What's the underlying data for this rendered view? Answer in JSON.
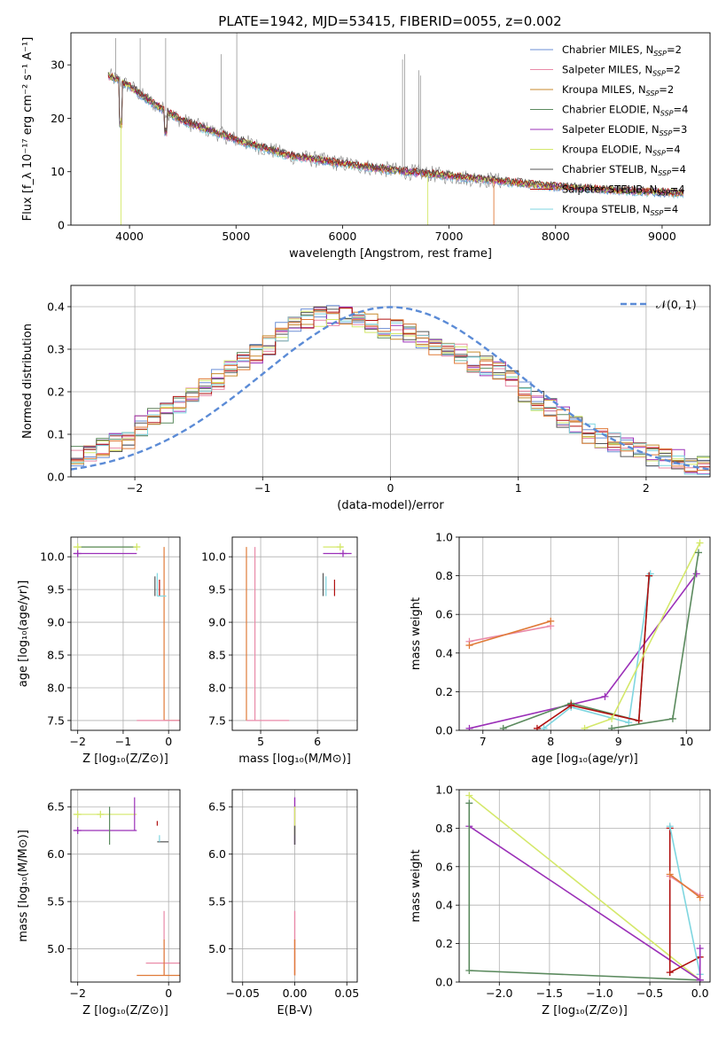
{
  "figure": {
    "title": "PLATE=1942, MJD=53415, FIBERID=0055, z=0.002"
  },
  "colors": {
    "chabrier_miles": "#6b8fd6",
    "salpeter_miles": "#e98aa8",
    "kroupa_miles": "#c88a2e",
    "chabrier_elodie": "#5b8a5e",
    "salpeter_elodie": "#9b30b8",
    "kroupa_elodie": "#d4e86a",
    "chabrier_stelib": "#555555",
    "salpeter_stelib": "#b01010",
    "kroupa_stelib": "#7fd6e0",
    "observed": "#888888",
    "orange": "#e07b39",
    "gauss": "#5b8bd6",
    "grid": "#b0b0b0"
  },
  "chart_data": [
    {
      "id": "spectrum",
      "type": "line",
      "title": "PLATE=1942, MJD=53415, FIBERID=0055, z=0.002",
      "xlabel": "wavelength [Angstrom, rest frame]",
      "ylabel": "Flux [f_λ 10⁻¹⁷ erg cm⁻² s⁻¹ A⁻¹]",
      "xlim": [
        3450,
        9450
      ],
      "ylim": [
        0,
        36
      ],
      "xticks": [
        4000,
        5000,
        6000,
        7000,
        8000,
        9000
      ],
      "yticks": [
        0,
        10,
        20,
        30
      ],
      "grid": false,
      "legend_position": "top-right",
      "continuum": {
        "x": [
          3800,
          3900,
          4000,
          4200,
          4500,
          5000,
          5500,
          6000,
          6500,
          7000,
          7500,
          8000,
          8500,
          9000,
          9200
        ],
        "y": [
          28,
          27,
          26,
          23,
          19.5,
          16,
          13,
          11.5,
          10.2,
          9.2,
          8.2,
          7.2,
          6.6,
          6.1,
          5.9
        ]
      },
      "legend": [
        {
          "label": "Chabrier MILES, N",
          "sub": "SSP",
          "eq": "=2",
          "color_key": "chabrier_miles"
        },
        {
          "label": "Salpeter MILES, N",
          "sub": "SSP",
          "eq": "=2",
          "color_key": "salpeter_miles"
        },
        {
          "label": "Kroupa MILES, N",
          "sub": "SSP",
          "eq": "=2",
          "color_key": "kroupa_miles"
        },
        {
          "label": "Chabrier ELODIE, N",
          "sub": "SSP",
          "eq": "=4",
          "color_key": "chabrier_elodie"
        },
        {
          "label": "Salpeter ELODIE, N",
          "sub": "SSP",
          "eq": "=3",
          "color_key": "salpeter_elodie"
        },
        {
          "label": "Kroupa ELODIE, N",
          "sub": "SSP",
          "eq": "=4",
          "color_key": "kroupa_elodie"
        },
        {
          "label": "Chabrier STELIB, N",
          "sub": "SSP",
          "eq": "=4",
          "color_key": "chabrier_stelib"
        },
        {
          "label": "Salpeter STELIB, N",
          "sub": "SSP",
          "eq": "=4",
          "color_key": "salpeter_stelib"
        },
        {
          "label": "Kroupa STELIB, N",
          "sub": "SSP",
          "eq": "=4",
          "color_key": "kroupa_stelib"
        }
      ]
    },
    {
      "id": "residuals",
      "type": "line",
      "xlabel": "(data-model)/error",
      "ylabel": "Normed distribution",
      "xlim": [
        -2.5,
        2.5
      ],
      "ylim": [
        0,
        0.45
      ],
      "xticks": [
        -2,
        -1,
        0,
        1,
        2
      ],
      "yticks": [
        0.0,
        0.1,
        0.2,
        0.3,
        0.4
      ],
      "grid": true,
      "legend_position": "top-right",
      "legend_label": "𝒩(0, 1)",
      "gaussian": {
        "mean": 0,
        "sigma": 1
      },
      "hist_center": {
        "x": [
          -2.45,
          -2.35,
          -2.25,
          -2.15,
          -2.05,
          -1.95,
          -1.85,
          -1.75,
          -1.65,
          -1.55,
          -1.45,
          -1.35,
          -1.25,
          -1.15,
          -1.05,
          -0.95,
          -0.85,
          -0.75,
          -0.65,
          -0.55,
          -0.45,
          -0.35,
          -0.25,
          -0.15,
          -0.05,
          0.05,
          0.15,
          0.25,
          0.35,
          0.45,
          0.55,
          0.65,
          0.75,
          0.85,
          0.95,
          1.05,
          1.15,
          1.25,
          1.35,
          1.45,
          1.55,
          1.65,
          1.75,
          1.85,
          1.95,
          2.05,
          2.15,
          2.25,
          2.35,
          2.45
        ],
        "y": [
          0.05,
          0.055,
          0.07,
          0.08,
          0.09,
          0.12,
          0.14,
          0.15,
          0.17,
          0.19,
          0.21,
          0.23,
          0.25,
          0.27,
          0.29,
          0.31,
          0.34,
          0.36,
          0.37,
          0.375,
          0.38,
          0.375,
          0.37,
          0.36,
          0.35,
          0.345,
          0.335,
          0.32,
          0.31,
          0.3,
          0.29,
          0.27,
          0.26,
          0.25,
          0.23,
          0.2,
          0.18,
          0.16,
          0.14,
          0.12,
          0.1,
          0.09,
          0.08,
          0.07,
          0.06,
          0.05,
          0.045,
          0.04,
          0.03,
          0.025
        ]
      }
    },
    {
      "id": "age_vs_Z",
      "type": "scatter",
      "xlabel": "Z [log₁₀(Z/Z⊙)]",
      "ylabel": "age  [log₁₀(age/yr)]",
      "xlim": [
        -2.15,
        0.25
      ],
      "ylim": [
        7.35,
        10.3
      ],
      "xticks": [
        -2,
        -1,
        0
      ],
      "yticks": [
        7.5,
        8.0,
        8.5,
        9.0,
        9.5,
        10.0
      ],
      "grid": true
    },
    {
      "id": "age_vs_mass",
      "type": "scatter",
      "xlabel": "mass [log₁₀(M/M⊙)]",
      "xlim": [
        4.5,
        6.7
      ],
      "ylim": [
        7.35,
        10.3
      ],
      "xticks": [
        5,
        6
      ],
      "yticks": [
        7.5,
        8.0,
        8.5,
        9.0,
        9.5,
        10.0
      ],
      "grid": true
    },
    {
      "id": "weight_vs_age",
      "type": "line",
      "xlabel": "age  [log₁₀(age/yr)]",
      "ylabel": "mass weight",
      "xlim": [
        6.65,
        10.35
      ],
      "ylim": [
        0,
        1.0
      ],
      "xticks": [
        7,
        8,
        9,
        10
      ],
      "yticks": [
        0.0,
        0.2,
        0.4,
        0.6,
        0.8,
        1.0
      ],
      "grid": true,
      "series": [
        {
          "color_key": "salpeter_miles",
          "x": [
            6.8,
            8.0
          ],
          "y": [
            0.46,
            0.54
          ]
        },
        {
          "color_key": "orange",
          "x": [
            6.8,
            8.0
          ],
          "y": [
            0.44,
            0.565
          ]
        },
        {
          "color_key": "salpeter_elodie",
          "x": [
            6.8,
            8.8,
            10.15
          ],
          "y": [
            0.01,
            0.175,
            0.81
          ]
        },
        {
          "color_key": "chabrier_elodie",
          "x": [
            7.3,
            8.3,
            9.3,
            9.45
          ],
          "y": [
            0.01,
            0.14,
            0.05,
            0.8
          ]
        },
        {
          "color_key": "kroupa_stelib",
          "x": [
            7.9,
            8.3,
            9.15,
            9.47
          ],
          "y": [
            0.01,
            0.12,
            0.04,
            0.81
          ]
        },
        {
          "color_key": "salpeter_stelib",
          "x": [
            7.8,
            8.3,
            9.3,
            9.45
          ],
          "y": [
            0.01,
            0.13,
            0.05,
            0.8
          ]
        },
        {
          "color_key": "kroupa_elodie",
          "x": [
            8.5,
            8.9,
            10.2
          ],
          "y": [
            0.01,
            0.06,
            0.97
          ]
        },
        {
          "color_key": "chabrier_elodie",
          "x": [
            8.9,
            9.8,
            10.18
          ],
          "y": [
            0.01,
            0.06,
            0.92
          ]
        }
      ]
    },
    {
      "id": "mass_vs_Z",
      "type": "scatter",
      "xlabel": "Z [log₁₀(Z/Z⊙)]",
      "ylabel": "mass [log₁₀(M/M⊙)]",
      "xlim": [
        -2.15,
        0.25
      ],
      "ylim": [
        4.65,
        6.68
      ],
      "xticks": [
        -2,
        0
      ],
      "yticks": [
        5.0,
        5.5,
        6.0,
        6.5
      ],
      "grid": true
    },
    {
      "id": "mass_vs_ebv",
      "type": "scatter",
      "xlabel": "E(B-V)",
      "xlim": [
        -0.06,
        0.06
      ],
      "ylim": [
        4.65,
        6.68
      ],
      "xticks": [
        -0.05,
        0.0,
        0.05
      ],
      "yticks": [
        5.0,
        5.5,
        6.0,
        6.5
      ],
      "grid": true
    },
    {
      "id": "weight_vs_Z",
      "type": "line",
      "xlabel": "Z [log₁₀(Z/Z⊙)]",
      "ylabel": "mass weight",
      "xlim": [
        -2.4,
        0.1
      ],
      "ylim": [
        0,
        1.0
      ],
      "xticks": [
        -2.0,
        -1.5,
        -1.0,
        -0.5,
        0.0
      ],
      "yticks": [
        0.0,
        0.2,
        0.4,
        0.6,
        0.8,
        1.0
      ],
      "grid": true,
      "series": [
        {
          "color_key": "kroupa_elodie",
          "x": [
            -2.3,
            0.0
          ],
          "y": [
            0.97,
            0.01
          ]
        },
        {
          "color_key": "salpeter_elodie",
          "x": [
            -2.3,
            0.0
          ],
          "y": [
            0.81,
            0.01
          ]
        },
        {
          "color_key": "chabrier_elodie",
          "x": [
            -2.3,
            -2.3,
            0.0
          ],
          "y": [
            0.93,
            0.06,
            0.01
          ]
        },
        {
          "color_key": "salpeter_stelib",
          "x": [
            -0.3,
            -0.3,
            0.0
          ],
          "y": [
            0.8,
            0.05,
            0.13
          ]
        },
        {
          "color_key": "kroupa_stelib",
          "x": [
            -0.3,
            0.0
          ],
          "y": [
            0.81,
            0.04
          ]
        },
        {
          "color_key": "salpeter_miles",
          "x": [
            -0.3,
            0.0
          ],
          "y": [
            0.55,
            0.45
          ]
        },
        {
          "color_key": "orange",
          "x": [
            -0.3,
            0.0
          ],
          "y": [
            0.56,
            0.44
          ]
        },
        {
          "color_key": "salpeter_elodie",
          "x": [
            0.0,
            0.0
          ],
          "y": [
            0.175,
            0.01
          ]
        }
      ]
    }
  ]
}
